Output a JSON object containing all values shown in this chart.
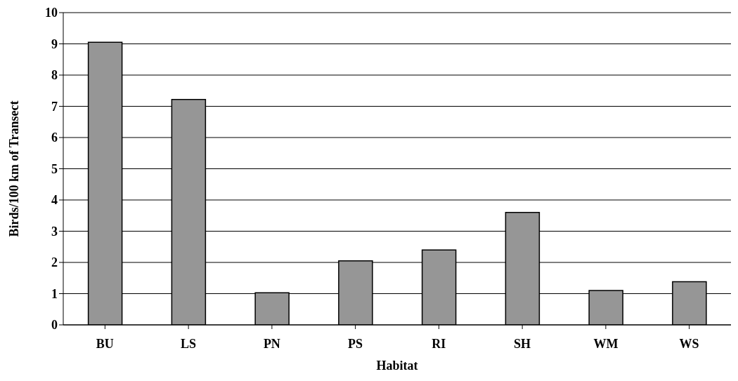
{
  "chart_data": {
    "type": "bar",
    "xlabel": "Habitat",
    "ylabel": "Birds/100 km of Transect",
    "categories": [
      "BU",
      "LS",
      "PN",
      "PS",
      "RI",
      "SH",
      "WM",
      "WS"
    ],
    "values": [
      9.05,
      7.22,
      1.03,
      2.05,
      2.4,
      3.6,
      1.1,
      1.38
    ],
    "color": "#969696",
    "ylim": [
      0,
      10
    ],
    "yticks": [
      0,
      1,
      2,
      3,
      4,
      5,
      6,
      7,
      8,
      9,
      10
    ],
    "grid": "y"
  }
}
